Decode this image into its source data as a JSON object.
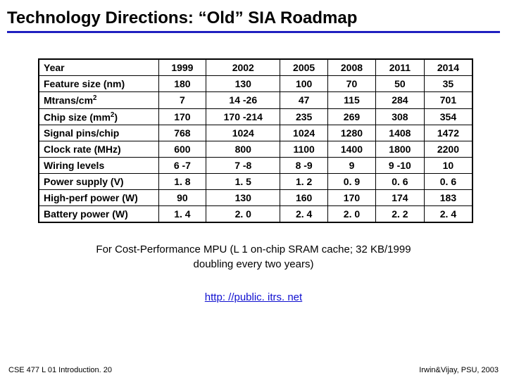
{
  "title": "Technology Directions: “Old” SIA Roadmap",
  "table": {
    "header": [
      "Year",
      "1999",
      "2002",
      "2005",
      "2008",
      "2011",
      "2014"
    ],
    "rows": [
      {
        "label_html": "Feature size (nm)",
        "cells": [
          "180",
          "130",
          "100",
          "70",
          "50",
          "35"
        ]
      },
      {
        "label_html": "Mtrans/cm<sup>2</sup>",
        "cells": [
          "7",
          "14 -26",
          "47",
          "115",
          "284",
          "701"
        ]
      },
      {
        "label_html": "Chip size (mm<sup>2</sup>)",
        "cells": [
          "170",
          "170 -214",
          "235",
          "269",
          "308",
          "354"
        ]
      },
      {
        "label_html": "Signal pins/chip",
        "cells": [
          "768",
          "1024",
          "1024",
          "1280",
          "1408",
          "1472"
        ]
      },
      {
        "label_html": "Clock rate (MHz)",
        "cells": [
          "600",
          "800",
          "1100",
          "1400",
          "1800",
          "2200"
        ]
      },
      {
        "label_html": "Wiring levels",
        "cells": [
          "6 -7",
          "7 -8",
          "8 -9",
          "9",
          "9 -10",
          "10"
        ]
      },
      {
        "label_html": "Power supply (V)",
        "cells": [
          "1. 8",
          "1. 5",
          "1. 2",
          "0. 9",
          "0. 6",
          "0. 6"
        ]
      },
      {
        "label_html": "High-perf power (W)",
        "cells": [
          "90",
          "130",
          "160",
          "170",
          "174",
          "183"
        ]
      },
      {
        "label_html": "Battery power (W)",
        "cells": [
          "1. 4",
          "2. 0",
          "2. 4",
          "2. 0",
          "2. 2",
          "2. 4"
        ]
      }
    ]
  },
  "caption_line1": "For Cost-Performance MPU (L 1 on-chip SRAM cache; 32 KB/1999",
  "caption_line2": "doubling every two years)",
  "link_text": "http: //public. itrs. net",
  "footer_left": "CSE 477 L 01 Introduction. 20",
  "footer_right": "Irwin&Vijay, PSU, 2003",
  "colors": {
    "underline": "#2020c0",
    "link": "#1010d0",
    "text": "#000000",
    "background": "#ffffff"
  }
}
